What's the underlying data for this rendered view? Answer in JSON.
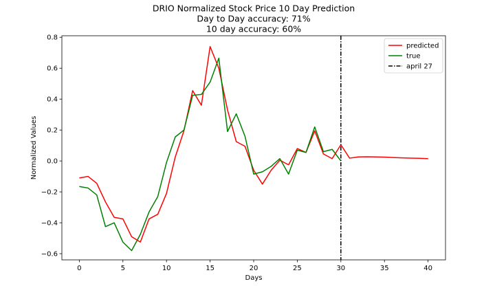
{
  "chart_data": {
    "type": "line",
    "title": "DRIO Normalized Stock Price 10 Day Prediction",
    "subtitle_lines": [
      "Day to Day accuracy: 71%",
      "10 day accuracy: 60%"
    ],
    "xlabel": "Days",
    "ylabel": "Normalized Values",
    "xlim": [
      -2,
      42
    ],
    "ylim": [
      -0.64,
      0.81
    ],
    "xticks": [
      0,
      5,
      10,
      15,
      20,
      25,
      30,
      35,
      40
    ],
    "yticks": [
      -0.6,
      -0.4,
      -0.2,
      0.0,
      0.2,
      0.4,
      0.6,
      0.8
    ],
    "ytick_labels": [
      "−0.6",
      "−0.4",
      "−0.2",
      "0.0",
      "0.2",
      "0.4",
      "0.6",
      "0.8"
    ],
    "grid": false,
    "legend_position": "top-right",
    "series": [
      {
        "name": "predicted",
        "color": "#ff0000",
        "x": [
          0,
          1,
          2,
          3,
          4,
          5,
          6,
          7,
          8,
          9,
          10,
          11,
          12,
          13,
          14,
          15,
          16,
          17,
          18,
          19,
          20,
          21,
          22,
          23,
          24,
          25,
          26,
          27,
          28,
          29,
          30,
          31,
          32,
          33,
          34,
          35,
          36,
          37,
          38,
          39,
          40
        ],
        "y": [
          -0.11,
          -0.1,
          -0.145,
          -0.265,
          -0.365,
          -0.375,
          -0.49,
          -0.525,
          -0.375,
          -0.345,
          -0.21,
          0.025,
          0.195,
          0.455,
          0.36,
          0.74,
          0.6,
          0.33,
          0.125,
          0.095,
          -0.06,
          -0.15,
          -0.06,
          0.005,
          -0.025,
          0.08,
          0.055,
          0.195,
          0.045,
          0.015,
          0.105,
          0.018,
          0.026,
          0.027,
          0.026,
          0.025,
          0.022,
          0.02,
          0.018,
          0.017,
          0.015
        ]
      },
      {
        "name": "true",
        "color": "#008000",
        "x": [
          0,
          1,
          2,
          3,
          4,
          5,
          6,
          7,
          8,
          9,
          10,
          11,
          12,
          13,
          14,
          15,
          16,
          17,
          18,
          19,
          20,
          21,
          22,
          23,
          24,
          25,
          26,
          27,
          28,
          29,
          30
        ],
        "y": [
          -0.165,
          -0.175,
          -0.22,
          -0.425,
          -0.4,
          -0.525,
          -0.58,
          -0.475,
          -0.33,
          -0.23,
          -0.01,
          0.155,
          0.2,
          0.425,
          0.43,
          0.51,
          0.665,
          0.19,
          0.305,
          0.16,
          -0.085,
          -0.07,
          -0.035,
          0.015,
          -0.085,
          0.07,
          0.055,
          0.22,
          0.06,
          0.075,
          0.0
        ]
      }
    ],
    "vline": {
      "name": "april 27",
      "x": 30,
      "color": "#000000",
      "style": "dash-dot"
    }
  }
}
